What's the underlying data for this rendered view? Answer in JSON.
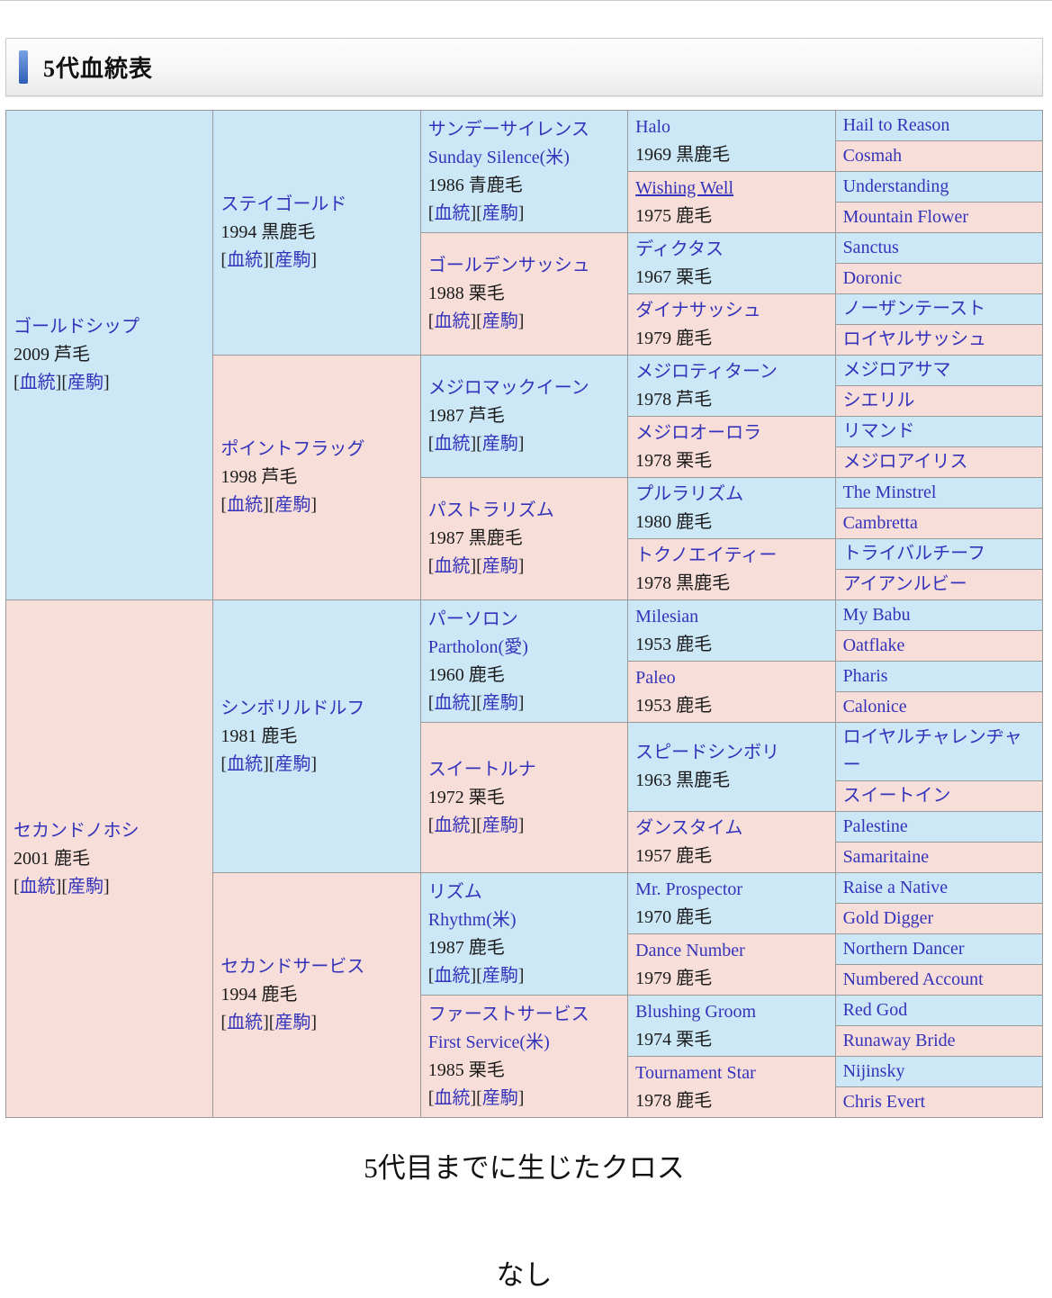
{
  "header": {
    "title": "5代血統表"
  },
  "labels": {
    "blood": "血統",
    "progeny": "産駒",
    "lb": "[",
    "rb": "]"
  },
  "colors": {
    "male_bg": "#cce7f6",
    "female_bg": "#f8ded8",
    "link": "#3333bb",
    "border": "#999999",
    "accent_top": "#7aa2e2",
    "accent_bottom": "#2e5cb8"
  },
  "cross": {
    "title": "5代目までに生じたクロス",
    "value": "なし"
  },
  "pedigree": {
    "gen1": [
      {
        "name": "ゴールドシップ",
        "detail": "2009 芦毛"
      },
      {
        "name": "セカンドノホシ",
        "detail": "2001 鹿毛"
      }
    ],
    "gen2": [
      {
        "name": "ステイゴールド",
        "detail": "1994 黒鹿毛"
      },
      {
        "name": "ポイントフラッグ",
        "detail": "1998 芦毛"
      },
      {
        "name": "シンボリルドルフ",
        "detail": "1981 鹿毛"
      },
      {
        "name": "セカンドサービス",
        "detail": "1994 鹿毛"
      }
    ],
    "gen3": [
      {
        "name": "サンデーサイレンス",
        "name2": "Sunday Silence(米)",
        "detail": "1986 青鹿毛"
      },
      {
        "name": "ゴールデンサッシュ",
        "detail": "1988 栗毛"
      },
      {
        "name": "メジロマックイーン",
        "detail": "1987 芦毛"
      },
      {
        "name": "パストラリズム",
        "detail": "1987 黒鹿毛"
      },
      {
        "name": "パーソロン",
        "name2": "Partholon(愛)",
        "detail": "1960 鹿毛"
      },
      {
        "name": "スイートルナ",
        "detail": "1972 栗毛"
      },
      {
        "name": "リズム",
        "name2": "Rhythm(米)",
        "detail": "1987 鹿毛"
      },
      {
        "name": "ファーストサービス",
        "name2": "First Service(米)",
        "detail": "1985 栗毛"
      }
    ],
    "gen4": [
      {
        "name": "Halo",
        "detail": "1969 黒鹿毛"
      },
      {
        "name": "Wishing Well",
        "detail": "1975 鹿毛"
      },
      {
        "name": "ディクタス",
        "detail": "1967 栗毛"
      },
      {
        "name": "ダイナサッシュ",
        "detail": "1979 鹿毛"
      },
      {
        "name": "メジロティターン",
        "detail": "1978 芦毛"
      },
      {
        "name": "メジロオーロラ",
        "detail": "1978 栗毛"
      },
      {
        "name": "プルラリズム",
        "detail": "1980 鹿毛"
      },
      {
        "name": "トクノエイティー",
        "detail": "1978 黒鹿毛"
      },
      {
        "name": "Milesian",
        "detail": "1953 鹿毛"
      },
      {
        "name": "Paleo",
        "detail": "1953 鹿毛"
      },
      {
        "name": "スピードシンボリ",
        "detail": "1963 黒鹿毛"
      },
      {
        "name": "ダンスタイム",
        "detail": "1957 鹿毛"
      },
      {
        "name": "Mr. Prospector",
        "detail": "1970 鹿毛"
      },
      {
        "name": "Dance Number",
        "detail": "1979 鹿毛"
      },
      {
        "name": "Blushing Groom",
        "detail": "1974 栗毛"
      },
      {
        "name": "Tournament Star",
        "detail": "1978 鹿毛"
      }
    ],
    "gen5": [
      {
        "name": "Hail to Reason"
      },
      {
        "name": "Cosmah"
      },
      {
        "name": "Understanding"
      },
      {
        "name": "Mountain Flower"
      },
      {
        "name": "Sanctus"
      },
      {
        "name": "Doronic"
      },
      {
        "name": "ノーザンテースト"
      },
      {
        "name": "ロイヤルサッシュ"
      },
      {
        "name": "メジロアサマ"
      },
      {
        "name": "シエリル"
      },
      {
        "name": "リマンド"
      },
      {
        "name": "メジロアイリス"
      },
      {
        "name": "The Minstrel"
      },
      {
        "name": "Cambretta"
      },
      {
        "name": "トライバルチーフ"
      },
      {
        "name": "アイアンルビー"
      },
      {
        "name": "My Babu"
      },
      {
        "name": "Oatflake"
      },
      {
        "name": "Pharis"
      },
      {
        "name": "Calonice"
      },
      {
        "name": "ロイヤルチャレンヂャー"
      },
      {
        "name": "スイートイン"
      },
      {
        "name": "Palestine"
      },
      {
        "name": "Samaritaine"
      },
      {
        "name": "Raise a Native"
      },
      {
        "name": "Gold Digger"
      },
      {
        "name": "Northern Dancer"
      },
      {
        "name": "Numbered Account"
      },
      {
        "name": "Red God"
      },
      {
        "name": "Runaway Bride"
      },
      {
        "name": "Nijinsky"
      },
      {
        "name": "Chris Evert"
      }
    ]
  }
}
